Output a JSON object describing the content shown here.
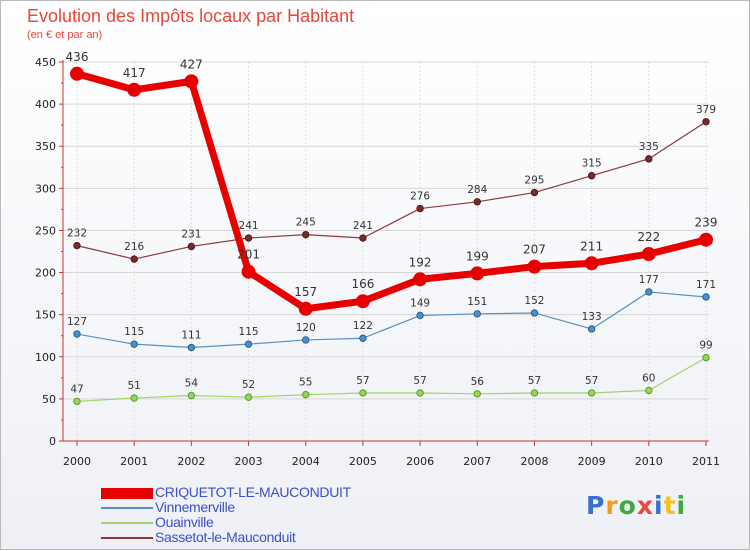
{
  "header": {
    "title": "Evolution des Impôts locaux par Habitant",
    "subtitle": "(en € et par an)"
  },
  "logo": {
    "letters": [
      "P",
      "r",
      "o",
      "x",
      "i",
      "t",
      "i"
    ]
  },
  "chart_data": {
    "type": "line",
    "title": "Evolution des Impôts locaux par Habitant",
    "subtitle": "(en € et par an)",
    "xlabel": "",
    "ylabel": "",
    "ylim": [
      0,
      450
    ],
    "yticks": [
      0,
      50,
      100,
      150,
      200,
      250,
      300,
      350,
      400,
      450
    ],
    "grid": true,
    "legend_position": "bottom-left",
    "categories": [
      "2000",
      "2001",
      "2002",
      "2003",
      "2004",
      "2005",
      "2006",
      "2007",
      "2008",
      "2009",
      "2010",
      "2011"
    ],
    "series": [
      {
        "name": "CRIQUETOT-LE-MAUCONDUIT",
        "color": "#e80000",
        "marker_fill": "#e80000",
        "marker_stroke": "#e80000",
        "width": 7,
        "label_size": 12,
        "values": [
          436,
          417,
          427,
          201,
          157,
          166,
          192,
          199,
          207,
          211,
          222,
          239
        ]
      },
      {
        "name": "Vinnemerville",
        "color": "#5b8fc0",
        "marker_fill": "#4a90d0",
        "marker_stroke": "#2c5e8c",
        "width": 1.2,
        "label_size": 10.5,
        "values": [
          127,
          115,
          111,
          115,
          120,
          122,
          149,
          151,
          152,
          133,
          177,
          171
        ]
      },
      {
        "name": "Ouainville",
        "color": "#9ed468",
        "marker_fill": "#98d45a",
        "marker_stroke": "#5e9a2c",
        "width": 1.2,
        "label_size": 10.5,
        "values": [
          47,
          51,
          54,
          52,
          55,
          57,
          57,
          56,
          57,
          57,
          60,
          99
        ]
      },
      {
        "name": "Sassetot-le-Mauconduit",
        "color": "#8c3a3a",
        "marker_fill": "#7a2a2a",
        "marker_stroke": "#4e1a1a",
        "width": 1.2,
        "label_size": 10.5,
        "values": [
          232,
          216,
          231,
          241,
          245,
          241,
          276,
          284,
          295,
          315,
          335,
          379
        ]
      }
    ]
  }
}
